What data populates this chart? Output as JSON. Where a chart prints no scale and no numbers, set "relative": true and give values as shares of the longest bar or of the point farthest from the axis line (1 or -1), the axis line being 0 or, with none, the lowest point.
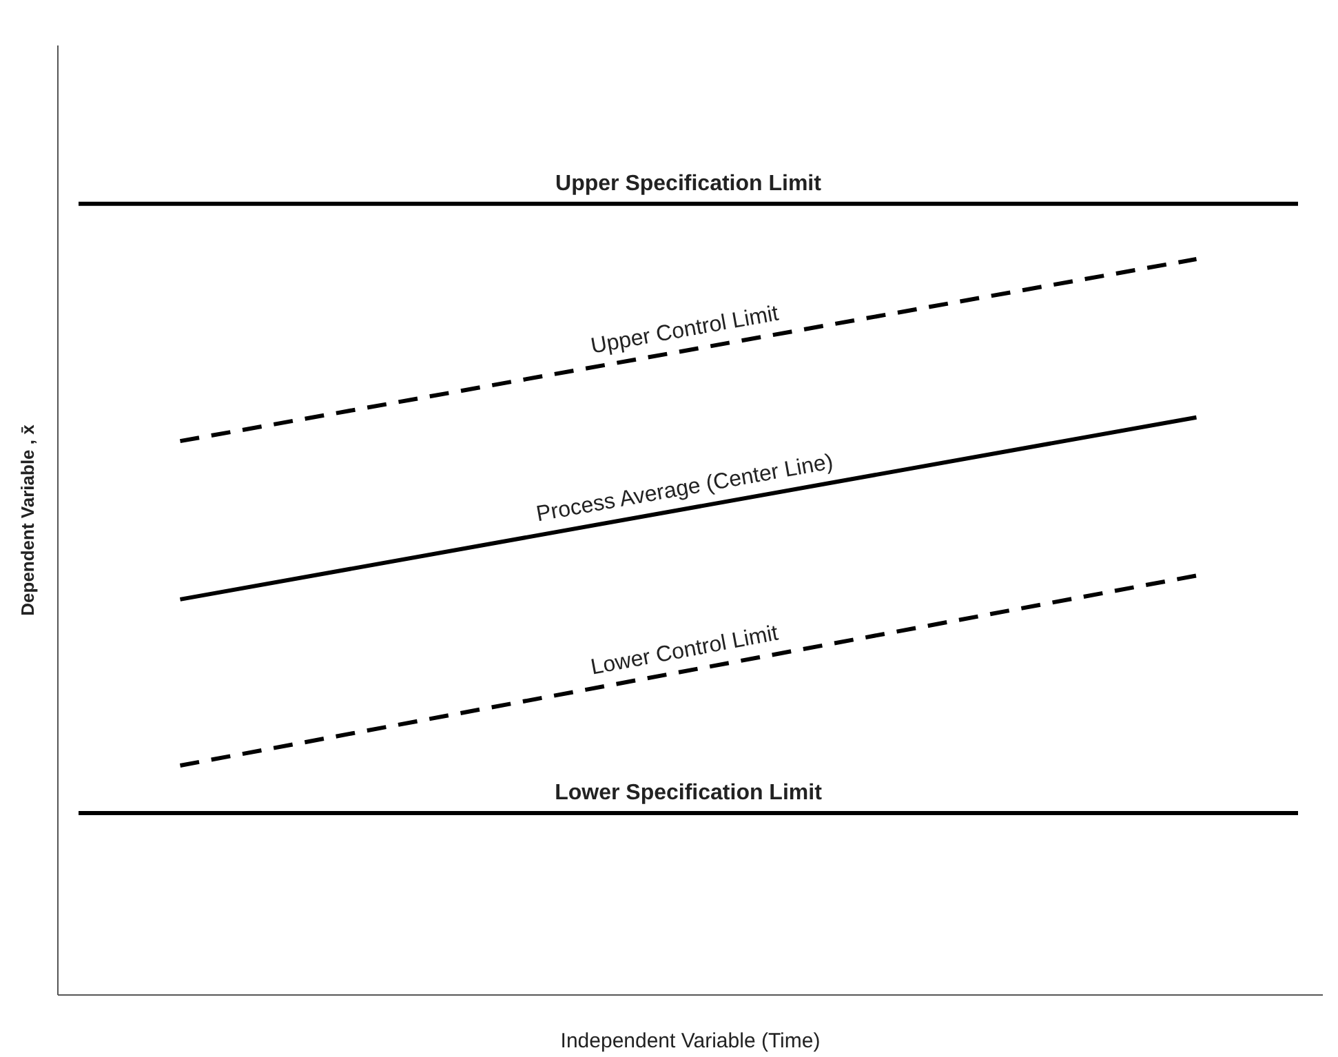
{
  "chart_data": {
    "type": "line",
    "relative": true,
    "xlabel": "Independent Variable (Time)",
    "ylabel": "Dependent Variable , x̄",
    "categories": [
      null,
      null,
      null,
      null,
      null,
      null,
      null,
      null,
      null,
      null,
      null,
      null,
      null
    ],
    "legend": false,
    "grid": false,
    "marker": "none",
    "series": [
      {
        "name": "Upper Specification Limit",
        "color": "#000000",
        "line_style": "solid",
        "values": [
          1,
          null,
          null,
          null,
          null,
          null,
          null,
          null,
          null,
          null,
          null,
          null,
          1
        ]
      },
      {
        "name": "Upper Control Limit",
        "color": "#000000",
        "line_style": "dashed",
        "values": [
          null,
          0.7,
          null,
          null,
          null,
          null,
          null,
          null,
          null,
          null,
          null,
          0.93,
          null
        ]
      },
      {
        "name": "Process Average (Center Line)",
        "color": "#000000",
        "line_style": "solid",
        "values": [
          null,
          0.5,
          null,
          null,
          null,
          null,
          null,
          null,
          null,
          null,
          null,
          0.73,
          null
        ]
      },
      {
        "name": "Lower Control Limit",
        "color": "#000000",
        "line_style": "dashed",
        "values": [
          null,
          0.29,
          null,
          null,
          null,
          null,
          null,
          null,
          null,
          null,
          null,
          0.53,
          null
        ]
      },
      {
        "name": "Lower Specification Limit",
        "color": "#000000",
        "line_style": "solid",
        "values": [
          0.23,
          null,
          null,
          null,
          null,
          null,
          null,
          null,
          null,
          null,
          null,
          null,
          0.23
        ]
      }
    ]
  }
}
